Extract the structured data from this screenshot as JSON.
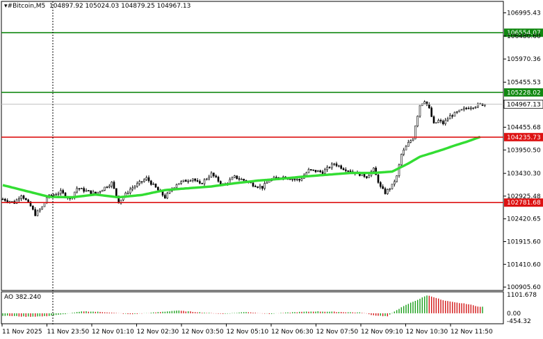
{
  "header": {
    "symbol": "#Bitcoin,M5",
    "ohlc": "104897.92 105024.03 104879.25 104967.13"
  },
  "indicator": {
    "label": "AO 382.240"
  },
  "colors": {
    "background": "#ffffff",
    "candle": "#000000",
    "ma": "#33dd33",
    "green_level": "#118811",
    "red_level": "#dd1111",
    "grid": "#c0c0c0",
    "ao_up": "#1a9e1a",
    "ao_down": "#d21414"
  },
  "chart_data": [
    {
      "type": "candlestick",
      "title": "#Bitcoin,M5",
      "ylim": [
        100830,
        107250
      ],
      "y_ticks": [
        "106995.43",
        "106480.60",
        "105970.36",
        "105455.53",
        "104455.68",
        "103950.50",
        "103430.30",
        "102925.48",
        "102420.65",
        "101915.60",
        "101410.60",
        "100905.60"
      ],
      "x_ticks": [
        "11 Nov 2025",
        "11 Nov 23:50",
        "12 Nov 01:10",
        "12 Nov 02:30",
        "12 Nov 03:50",
        "12 Nov 05:10",
        "12 Nov 06:30",
        "12 Nov 07:50",
        "12 Nov 09:10",
        "12 Nov 10:30",
        "12 Nov 11:50"
      ],
      "levels": [
        {
          "value": 106554.07,
          "label": "106554.07",
          "color": "green"
        },
        {
          "value": 105228.02,
          "label": "105228.02",
          "color": "green"
        },
        {
          "value": 104967.13,
          "label": "104967.13",
          "color": "current"
        },
        {
          "value": 104235.73,
          "label": "104235.73",
          "color": "red"
        },
        {
          "value": 102781.68,
          "label": "102781.68",
          "color": "red"
        }
      ],
      "series": [
        {
          "kind": "price",
          "path": [
            [
              0,
              102860
            ],
            [
              5,
              102780
            ],
            [
              8,
              102960
            ],
            [
              12,
              102700
            ],
            [
              14,
              102520
            ],
            [
              17,
              102680
            ],
            [
              19,
              102900
            ],
            [
              25,
              103020
            ],
            [
              29,
              102860
            ],
            [
              32,
              103100
            ],
            [
              40,
              102980
            ],
            [
              47,
              103220
            ],
            [
              50,
              102800
            ],
            [
              55,
              103080
            ],
            [
              62,
              103320
            ],
            [
              70,
              102900
            ],
            [
              75,
              103200
            ],
            [
              82,
              103320
            ],
            [
              85,
              103180
            ],
            [
              90,
              103420
            ],
            [
              95,
              103160
            ],
            [
              100,
              103350
            ],
            [
              105,
              103260
            ],
            [
              108,
              103180
            ],
            [
              112,
              103120
            ],
            [
              115,
              103280
            ],
            [
              120,
              103360
            ],
            [
              128,
              103280
            ],
            [
              132,
              103500
            ],
            [
              138,
              103460
            ],
            [
              143,
              103650
            ],
            [
              147,
              103540
            ],
            [
              152,
              103450
            ],
            [
              157,
              103360
            ],
            [
              160,
              103520
            ],
            [
              163,
              103120
            ],
            [
              165,
              103000
            ],
            [
              168,
              103160
            ],
            [
              170,
              103360
            ],
            [
              172,
              103850
            ],
            [
              175,
              104100
            ],
            [
              177,
              104220
            ],
            [
              178,
              104500
            ],
            [
              180,
              104950
            ],
            [
              182,
              105050
            ],
            [
              184,
              104860
            ],
            [
              186,
              104520
            ],
            [
              188,
              104600
            ],
            [
              190,
              104540
            ],
            [
              193,
              104700
            ],
            [
              196,
              104780
            ],
            [
              200,
              104880
            ],
            [
              203,
              104920
            ],
            [
              206,
              104960
            ],
            [
              208,
              104967
            ]
          ],
          "x_max": 210
        },
        {
          "kind": "moving_average",
          "path": [
            [
              0,
              103170
            ],
            [
              10,
              103040
            ],
            [
              20,
              102910
            ],
            [
              30,
              102900
            ],
            [
              40,
              102960
            ],
            [
              50,
              102900
            ],
            [
              60,
              102950
            ],
            [
              70,
              103060
            ],
            [
              80,
              103100
            ],
            [
              90,
              103140
            ],
            [
              100,
              103210
            ],
            [
              110,
              103270
            ],
            [
              120,
              103310
            ],
            [
              130,
              103360
            ],
            [
              140,
              103400
            ],
            [
              150,
              103440
            ],
            [
              160,
              103440
            ],
            [
              168,
              103470
            ],
            [
              175,
              103650
            ],
            [
              180,
              103800
            ],
            [
              185,
              103880
            ],
            [
              190,
              103960
            ],
            [
              195,
              104050
            ],
            [
              200,
              104130
            ],
            [
              206,
              104240
            ]
          ],
          "x_max": 210
        }
      ]
    },
    {
      "type": "bar",
      "title": "AO 382.240",
      "ylim": [
        -454.32,
        1101.678
      ],
      "y_ticks": [
        "1101.678",
        "0.00",
        "-454.32"
      ],
      "value_points": [
        [
          0,
          -140
        ],
        [
          10,
          -200
        ],
        [
          18,
          -180
        ],
        [
          25,
          -80
        ],
        [
          35,
          120
        ],
        [
          45,
          60
        ],
        [
          55,
          -60
        ],
        [
          65,
          40
        ],
        [
          75,
          160
        ],
        [
          85,
          60
        ],
        [
          95,
          -40
        ],
        [
          105,
          80
        ],
        [
          115,
          -40
        ],
        [
          125,
          60
        ],
        [
          135,
          110
        ],
        [
          145,
          80
        ],
        [
          155,
          40
        ],
        [
          160,
          -120
        ],
        [
          166,
          -180
        ],
        [
          170,
          200
        ],
        [
          175,
          560
        ],
        [
          180,
          860
        ],
        [
          183,
          1060
        ],
        [
          186,
          960
        ],
        [
          190,
          760
        ],
        [
          195,
          640
        ],
        [
          200,
          560
        ],
        [
          206,
          382
        ]
      ],
      "bar_count": 208
    }
  ]
}
